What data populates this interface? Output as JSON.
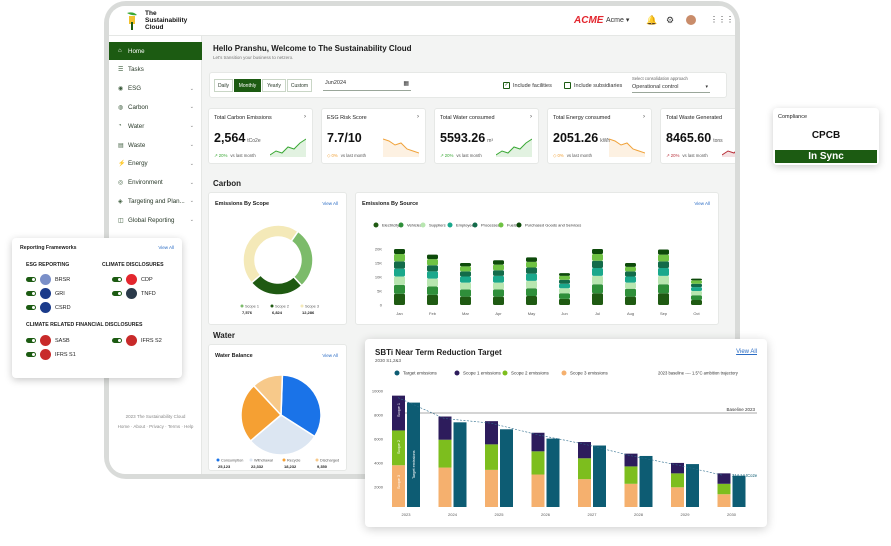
{
  "app": {
    "logo_line1": "The",
    "logo_line2": "Sustainability",
    "logo_line3": "Cloud",
    "brand": "ACME",
    "org_select": "Acme"
  },
  "sidebar": {
    "items": [
      {
        "label": "Home",
        "icon": "home-icon",
        "active": true
      },
      {
        "label": "Tasks",
        "icon": "tasks-icon"
      },
      {
        "label": "ESG",
        "icon": "esg-icon",
        "chev": true
      },
      {
        "label": "Carbon",
        "icon": "carbon-icon",
        "chev": true
      },
      {
        "label": "Water",
        "icon": "water-icon",
        "chev": true
      },
      {
        "label": "Waste",
        "icon": "waste-icon",
        "chev": true
      },
      {
        "label": "Energy",
        "icon": "energy-icon",
        "chev": true
      },
      {
        "label": "Environment",
        "icon": "environment-icon",
        "chev": true
      },
      {
        "label": "Targeting and Plan...",
        "icon": "target-icon",
        "chev": true
      },
      {
        "label": "Global Reporting",
        "icon": "report-icon",
        "chev": true
      }
    ],
    "footer_copyright": "2023 The Sustainability Cloud",
    "footer_links": "Home · About · Privacy · Terms · Help"
  },
  "header": {
    "greeting": "Hello Pranshu, Welcome to The Sustainability Cloud",
    "subtitle": "Let's transition your business to netzero."
  },
  "filters": {
    "periods": [
      "Daily",
      "Monthly",
      "Yearly",
      "Custom"
    ],
    "active_period": "Monthly",
    "date_value": "Jun2024",
    "include_facilities": "Include facilities",
    "include_subsidiaries": "Include subsidiaries",
    "consolidation_label": "Select consolidation approach",
    "consolidation_value": "Operational control"
  },
  "kpis": [
    {
      "title": "Total Carbon Emissions",
      "value": "2,564",
      "unit": "tCo2e",
      "delta": "20%",
      "delta_text": "vs last month",
      "trend": "up",
      "color": "#3aa835"
    },
    {
      "title": "ESG Risk Score",
      "value": "7.7/10",
      "unit": "",
      "delta": "0%",
      "delta_text": "vs last month",
      "trend": "flat",
      "color": "#f0a23a"
    },
    {
      "title": "Total Water consumed",
      "value": "5593.26",
      "unit": "m³",
      "delta": "20%",
      "delta_text": "vs last month",
      "trend": "up",
      "color": "#3aa835"
    },
    {
      "title": "Total Energy consumed",
      "value": "2051.26",
      "unit": "kWh",
      "delta": "0%",
      "delta_text": "vs last month",
      "trend": "flat",
      "color": "#f0a23a"
    },
    {
      "title": "Total Waste Generated",
      "value": "8465.60",
      "unit": "tons",
      "delta": "20%",
      "delta_text": "vs last month",
      "trend": "up",
      "color": "#b8303a"
    }
  ],
  "compliance": {
    "title": "Compliance",
    "value": "CPCB",
    "status": "In Sync"
  },
  "sections": {
    "carbon": "Carbon",
    "water": "Water"
  },
  "emissions_by_scope": {
    "title": "Emissions By Scope",
    "view_all": "View All",
    "chart_data": {
      "type": "pie",
      "categories": [
        "Scope 1",
        "Scope 2",
        "Scope 3"
      ],
      "values": [
        7576,
        6824,
        12286
      ],
      "labels": [
        "7,576",
        "6,824",
        "12,286"
      ],
      "colors": [
        "#7cbb6a",
        "#1f5a12",
        "#f4e9b8"
      ]
    }
  },
  "emissions_by_source": {
    "title": "Emissions By Source",
    "view_all": "View All",
    "chart_data": {
      "type": "bar",
      "categories": [
        "Jan",
        "Feb",
        "Mar",
        "Apr",
        "May",
        "Jun",
        "Jul",
        "Aug",
        "Sep",
        "Oct"
      ],
      "yticks": [
        "20K",
        "15K",
        "10K",
        "5K",
        "0"
      ],
      "ylim": [
        0,
        20000
      ],
      "series": [
        {
          "name": "Electricity",
          "color": "#1f5a12",
          "values": [
            4000,
            3600,
            3000,
            3000,
            3200,
            2200,
            4200,
            3000,
            4200,
            1800
          ]
        },
        {
          "name": "Vehicles",
          "color": "#2f8f3a",
          "values": [
            3200,
            3000,
            2600,
            2600,
            2800,
            2000,
            3200,
            2800,
            3200,
            1700
          ]
        },
        {
          "name": "Suppliers",
          "color": "#b8e6b0",
          "values": [
            3000,
            2800,
            2400,
            2400,
            2600,
            1800,
            3000,
            2200,
            3000,
            1500
          ]
        },
        {
          "name": "Employees",
          "color": "#1aa88c",
          "values": [
            2800,
            2600,
            2200,
            2400,
            2600,
            1600,
            2800,
            2200,
            2800,
            1400
          ]
        },
        {
          "name": "Processes",
          "color": "#136b4a",
          "values": [
            2600,
            2200,
            1800,
            2000,
            2200,
            1400,
            2600,
            1800,
            2400,
            1200
          ]
        },
        {
          "name": "Fuels",
          "color": "#6fc243",
          "values": [
            2600,
            2200,
            1800,
            2000,
            2000,
            1400,
            2400,
            1600,
            2400,
            1200
          ]
        },
        {
          "name": "Purchased Goods and Services",
          "color": "#0d4a0a",
          "values": [
            1800,
            1600,
            1200,
            1600,
            1600,
            1000,
            1800,
            1400,
            1800,
            600
          ]
        }
      ]
    }
  },
  "water_balance": {
    "title": "Water Balance",
    "view_all": "View All",
    "chart_data": {
      "type": "pie",
      "categories": [
        "Consumption",
        "Withdrawal",
        "Recycle",
        "Discharged"
      ],
      "values": [
        25123,
        22332,
        18232,
        9350
      ],
      "labels": [
        "25,123",
        "22,332",
        "18,232",
        "9,350"
      ],
      "colors": [
        "#1a73e8",
        "#dce6f2",
        "#f5a033",
        "#f7c98a"
      ]
    }
  },
  "frameworks": {
    "title": "Reporting Frameworks",
    "view_all": "View All",
    "esg_heading": "ESG REPORTING",
    "climate_heading": "CLIMATE DISCLOSURES",
    "financial_heading": "CLIMATE RELATED FINANCIAL DISCLOSURES",
    "esg_items": [
      "BRSR",
      "GRI",
      "CSRD"
    ],
    "climate_items": [
      "CDP",
      "TNFD"
    ],
    "financial_items": [
      "SASB",
      "IFRS S2",
      "IFRS S1"
    ]
  },
  "sbti": {
    "title": "SBTi Near Term Reduction Target",
    "subtitle": "2030 S1,2&3",
    "view_all": "View All",
    "baseline_label": "Baseline 2023",
    "end_label": "314.14 tCo2e",
    "scope1_side": "Scope 1",
    "scope2_side": "Scope 2",
    "scope3_side": "Scope 3",
    "target_side": "Target emissions",
    "trajectory_legend": "2023 baseline ---- 1.5°C ambition trajectory",
    "chart_data": {
      "type": "bar",
      "categories": [
        "2023",
        "2024",
        "2025",
        "2026",
        "2027",
        "2028",
        "2029",
        "2030"
      ],
      "yticks": [
        "10000",
        "8000",
        "6000",
        "4000",
        "2000"
      ],
      "ylim": [
        0,
        10000
      ],
      "series": [
        {
          "name": "Target emissions",
          "color": "#0d5c73",
          "values": [
            9000,
            7300,
            6700,
            5900,
            5300,
            4400,
            3700,
            2700
          ]
        },
        {
          "name": "Scope 1 emissions",
          "color": "#2d1c5c",
          "values": [
            3000,
            2000,
            2000,
            1600,
            1400,
            1100,
            900,
            900
          ]
        },
        {
          "name": "Scope 2 emissions",
          "color": "#7dbe1e",
          "values": [
            3000,
            2400,
            2200,
            2000,
            1800,
            1500,
            1200,
            900
          ]
        },
        {
          "name": "Scope 3 emissions",
          "color": "#f5b06e",
          "values": [
            3600,
            3400,
            3200,
            2800,
            2400,
            2000,
            1700,
            1100
          ]
        }
      ]
    }
  }
}
